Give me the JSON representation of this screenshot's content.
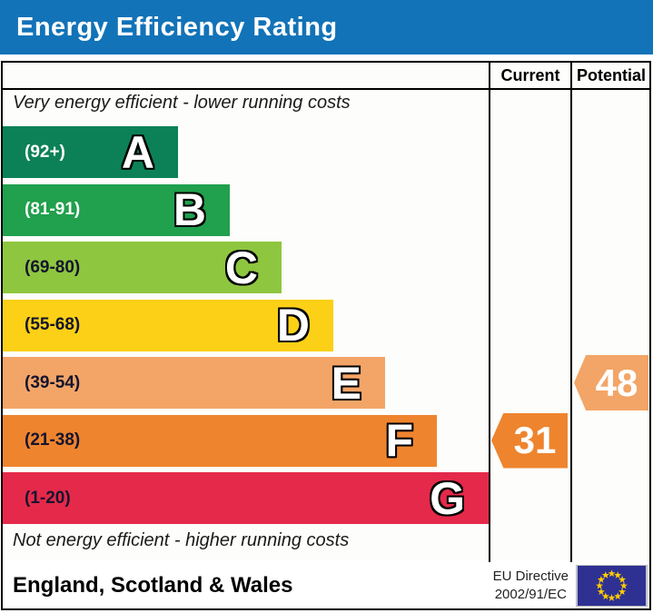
{
  "title": "Energy Efficiency Rating",
  "header": {
    "current_label": "Current",
    "potential_label": "Potential"
  },
  "notes": {
    "top": "Very energy efficient - lower running costs",
    "bottom": "Not energy efficient - higher running costs"
  },
  "footer": {
    "region": "England, Scotland & Wales",
    "directive_line1": "EU Directive",
    "directive_line2": "2002/91/EC",
    "eu_flag": {
      "background": "#2e3192",
      "star_color": "#ffcc00"
    }
  },
  "colors": {
    "banner": "#1273b8",
    "border": "#000000",
    "background": "#ffffff"
  },
  "chart_data": {
    "type": "bar",
    "orientation": "horizontal",
    "title": "Energy Efficiency Rating",
    "columns": [
      "Current",
      "Potential"
    ],
    "bands": [
      {
        "letter": "A",
        "range": "(92+)",
        "range_min": 92,
        "range_max": 100,
        "color": "#0c8157",
        "label_color": "#ffffff"
      },
      {
        "letter": "B",
        "range": "(81-91)",
        "range_min": 81,
        "range_max": 91,
        "color": "#21a04d",
        "label_color": "#ffffff"
      },
      {
        "letter": "C",
        "range": "(69-80)",
        "range_min": 69,
        "range_max": 80,
        "color": "#8ec63f",
        "label_color": "#15152e"
      },
      {
        "letter": "D",
        "range": "(55-68)",
        "range_min": 55,
        "range_max": 68,
        "color": "#fbd016",
        "label_color": "#15152e"
      },
      {
        "letter": "E",
        "range": "(39-54)",
        "range_min": 39,
        "range_max": 54,
        "color": "#f3a567",
        "label_color": "#15152e"
      },
      {
        "letter": "F",
        "range": "(21-38)",
        "range_min": 21,
        "range_max": 38,
        "color": "#ee842e",
        "label_color": "#15152e"
      },
      {
        "letter": "G",
        "range": "(1-20)",
        "range_min": 1,
        "range_max": 20,
        "color": "#e5294a",
        "label_color": "#15152e"
      }
    ],
    "current": {
      "value": 31,
      "band": "F"
    },
    "potential": {
      "value": 48,
      "band": "E"
    }
  }
}
